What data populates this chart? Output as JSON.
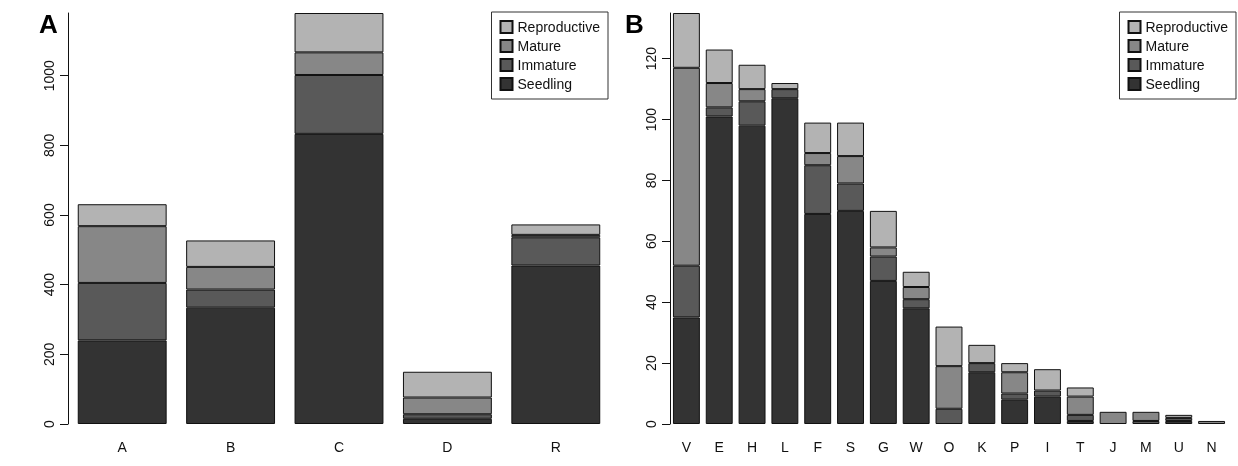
{
  "chart_data": [
    {
      "type": "bar",
      "title": "A",
      "categories": [
        "A",
        "B",
        "C",
        "D",
        "R"
      ],
      "stacked": true,
      "ylim": [
        0,
        1180
      ],
      "yticks": [
        0,
        200,
        400,
        600,
        800,
        1000
      ],
      "grid": false,
      "legend": "top right",
      "series": [
        {
          "name": "Seedling",
          "color": "#333333",
          "values": [
            240,
            334,
            833,
            15,
            455
          ]
        },
        {
          "name": "Immature",
          "color": "#595959",
          "values": [
            165,
            52,
            169,
            13,
            81
          ]
        },
        {
          "name": "Mature",
          "color": "#878787",
          "values": [
            163,
            65,
            65,
            48,
            7
          ]
        },
        {
          "name": "Reproductive",
          "color": "#b3b3b3",
          "values": [
            63,
            76,
            113,
            74,
            30
          ]
        }
      ]
    },
    {
      "type": "bar",
      "title": "B",
      "categories": [
        "V",
        "E",
        "H",
        "L",
        "F",
        "S",
        "G",
        "W",
        "O",
        "K",
        "P",
        "I",
        "T",
        "J",
        "M",
        "U",
        "N"
      ],
      "stacked": true,
      "ylim": [
        0,
        135
      ],
      "yticks": [
        0,
        20,
        40,
        60,
        80,
        100,
        120
      ],
      "grid": false,
      "legend": "top right",
      "series": [
        {
          "name": "Seedling",
          "color": "#333333",
          "values": [
            35,
            101,
            98,
            107,
            69,
            70,
            47,
            38,
            0,
            17,
            8,
            9,
            1,
            0,
            0,
            1,
            0
          ]
        },
        {
          "name": "Immature",
          "color": "#595959",
          "values": [
            17,
            3,
            8,
            3,
            16,
            9,
            8,
            3,
            5,
            3,
            2,
            2,
            2,
            0,
            1,
            1,
            0
          ]
        },
        {
          "name": "Mature",
          "color": "#878787",
          "values": [
            65,
            8,
            4,
            0,
            4,
            9,
            3,
            4,
            14,
            0,
            7,
            0,
            6,
            4,
            3,
            0,
            1
          ]
        },
        {
          "name": "Reproductive",
          "color": "#b3b3b3",
          "values": [
            18,
            11,
            8,
            2,
            10,
            11,
            12,
            5,
            13,
            6,
            3,
            7,
            3,
            0,
            0,
            1,
            0
          ]
        }
      ]
    }
  ]
}
